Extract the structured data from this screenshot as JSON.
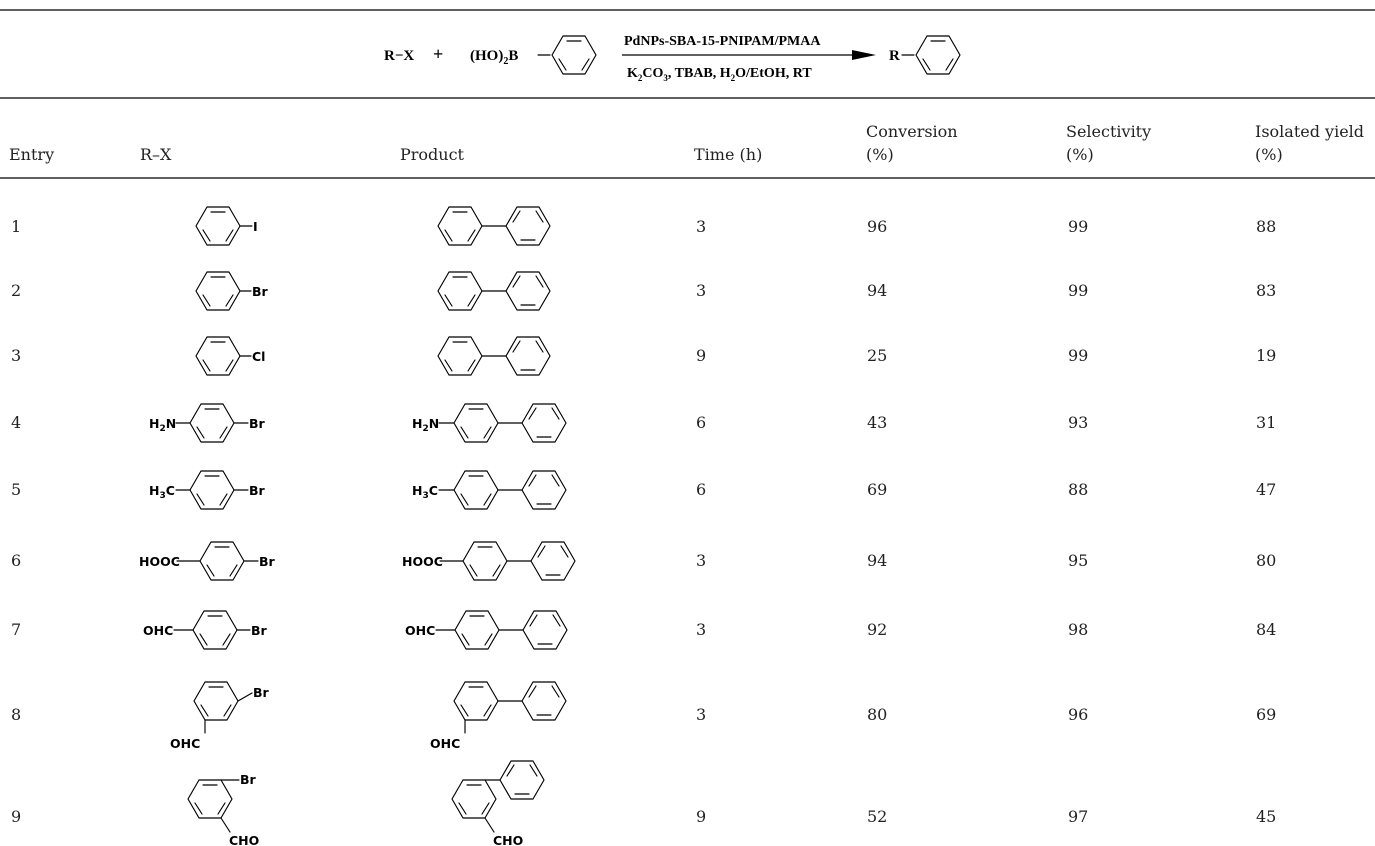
{
  "scheme": {
    "reactant": "R−X",
    "plus": "+",
    "boronic_acid": "(HO)",
    "boronic_sub": "2",
    "boronic_b": "B",
    "catalyst": "PdNPs-SBA-15-PNIPAM/PMAA",
    "conditions": {
      "k": "K",
      "k_sub": "2",
      "co": "CO",
      "co_sub": "3",
      "tbab": ", TBAB, H",
      "h_sub": "2",
      "rest": "O/EtOH, RT"
    },
    "product": "R"
  },
  "headers": {
    "entry": "Entry",
    "rx": "R–X",
    "product": "Product",
    "time": "Time (h)",
    "conversion_1": "Conversion",
    "conversion_2": "(%)",
    "selectivity_1": "Selectivity",
    "selectivity_2": "(%)",
    "yield_1": "Isolated yield",
    "yield_2": "(%)"
  },
  "rows": [
    {
      "entry": "1",
      "rx_sub": "I",
      "prod_sub": "",
      "time": "3",
      "conversion": "96",
      "selectivity": "99",
      "yield": "88"
    },
    {
      "entry": "2",
      "rx_sub": "Br",
      "prod_sub": "",
      "time": "3",
      "conversion": "94",
      "selectivity": "99",
      "yield": "83"
    },
    {
      "entry": "3",
      "rx_sub": "Cl",
      "prod_sub": "",
      "time": "9",
      "conversion": "25",
      "selectivity": "99",
      "yield": "19"
    },
    {
      "entry": "4",
      "rx_sub": "H2N / Br",
      "prod_sub": "H2N",
      "time": "6",
      "conversion": "43",
      "selectivity": "93",
      "yield": "31"
    },
    {
      "entry": "5",
      "rx_sub": "H3C / Br",
      "prod_sub": "H3C",
      "time": "6",
      "conversion": "69",
      "selectivity": "88",
      "yield": "47"
    },
    {
      "entry": "6",
      "rx_sub": "HOOC / Br",
      "prod_sub": "HOOC",
      "time": "3",
      "conversion": "94",
      "selectivity": "95",
      "yield": "80"
    },
    {
      "entry": "7",
      "rx_sub": "OHC / Br",
      "prod_sub": "OHC",
      "time": "3",
      "conversion": "92",
      "selectivity": "98",
      "yield": "84"
    },
    {
      "entry": "8",
      "rx_sub": "OHC / Br",
      "prod_sub": "OHC",
      "time": "3",
      "conversion": "80",
      "selectivity": "96",
      "yield": "69"
    },
    {
      "entry": "9",
      "rx_sub": "CHO / Br",
      "prod_sub": "CHO",
      "time": "9",
      "conversion": "52",
      "selectivity": "97",
      "yield": "45"
    }
  ],
  "labels": {
    "I": "I",
    "Br": "Br",
    "Cl": "Cl",
    "H2N_a": "H",
    "H2N_sub": "2",
    "H2N_b": "N",
    "H3C_a": "H",
    "H3C_sub": "3",
    "H3C_b": "C",
    "HOOC": "HOOC",
    "OHC": "OHC",
    "CHO": "CHO"
  }
}
